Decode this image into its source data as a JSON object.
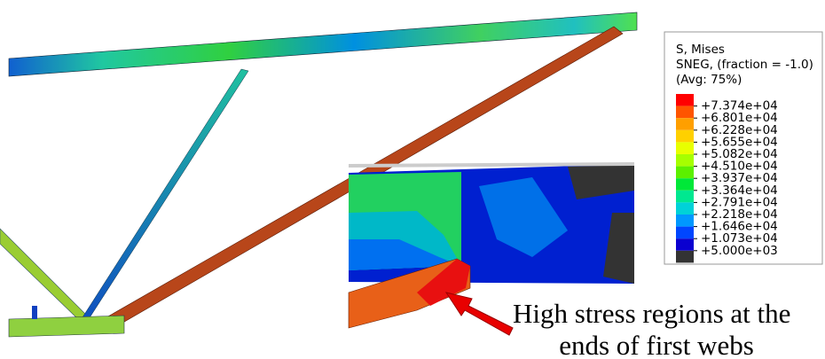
{
  "legend": {
    "title": [
      "S, Mises",
      "SNEG, (fraction = -1.0)",
      "(Avg: 75%)"
    ],
    "levels": [
      "+7.374e+04",
      "+6.801e+04",
      "+6.228e+04",
      "+5.655e+04",
      "+5.082e+04",
      "+4.510e+04",
      "+3.937e+04",
      "+3.364e+04",
      "+2.791e+04",
      "+2.218e+04",
      "+1.646e+04",
      "+1.073e+04",
      "+5.000e+03"
    ],
    "colors": [
      "#ff0000",
      "#ff5500",
      "#ff9f00",
      "#ffd000",
      "#e8ff00",
      "#a6ff00",
      "#5cf000",
      "#00e838",
      "#00e890",
      "#00d2d8",
      "#0098ff",
      "#0046ff",
      "#0a00d0",
      "#333333"
    ]
  },
  "annotation": {
    "lines": [
      "High stress regions at the",
      "ends of first webs"
    ]
  }
}
